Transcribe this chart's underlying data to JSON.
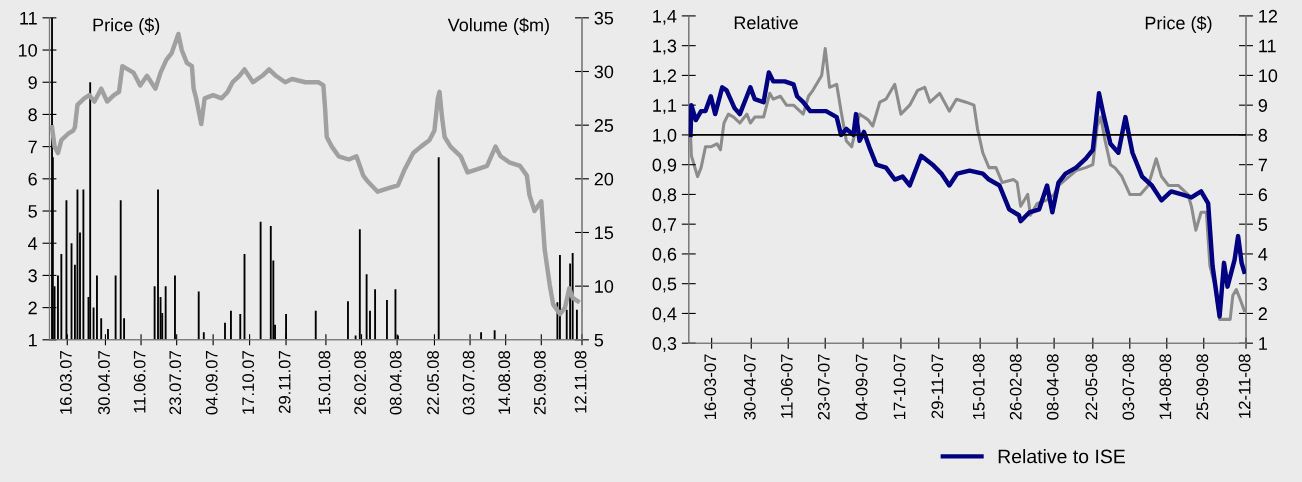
{
  "chart_data": [
    {
      "type": "line",
      "ylabel": "Price ($)",
      "y2label": "Volume ($m)",
      "xlim": [
        "2007-02-23",
        "2008-11-12"
      ],
      "xticks": [
        {
          "value": "2007-03-16",
          "label": "16.03.07"
        },
        {
          "value": "2007-04-30",
          "label": "30.04.07"
        },
        {
          "value": "2007-06-11",
          "label": "11.06.07"
        },
        {
          "value": "2007-07-23",
          "label": "23.07.07"
        },
        {
          "value": "2007-09-04",
          "label": "04.09.07"
        },
        {
          "value": "2007-10-17",
          "label": "17.10.07"
        },
        {
          "value": "2007-11-29",
          "label": "29.11.07"
        },
        {
          "value": "2008-01-15",
          "label": "15.01.08"
        },
        {
          "value": "2008-02-26",
          "label": "26.02.08"
        },
        {
          "value": "2008-04-08",
          "label": "08.04.08"
        },
        {
          "value": "2008-05-22",
          "label": "22.05.08"
        },
        {
          "value": "2008-07-03",
          "label": "03.07.08"
        },
        {
          "value": "2008-08-14",
          "label": "14.08.08"
        },
        {
          "value": "2008-09-25",
          "label": "25.09.08"
        },
        {
          "value": "2008-11-12",
          "label": "12.11.08"
        }
      ],
      "ylim": [
        1,
        11
      ],
      "yticks": [
        1,
        2,
        3,
        4,
        5,
        6,
        7,
        8,
        9,
        10,
        11
      ],
      "y2lim": [
        5,
        35
      ],
      "y2ticks": [
        5,
        10,
        15,
        20,
        25,
        30,
        35
      ],
      "grid": false,
      "legend": false,
      "series": [
        {
          "type": "bar",
          "axis": "y2",
          "color": "#000000",
          "x": [
            "2007-02-26",
            "2007-02-27",
            "2007-03-01",
            "2007-03-05",
            "2007-03-09",
            "2007-03-15",
            "2007-03-21",
            "2007-03-25",
            "2007-03-28",
            "2007-03-31",
            "2007-04-04",
            "2007-04-10",
            "2007-04-12",
            "2007-04-16",
            "2007-04-20",
            "2007-04-25",
            "2007-05-03",
            "2007-05-12",
            "2007-05-18",
            "2007-05-22",
            "2007-06-27",
            "2007-07-01",
            "2007-07-04",
            "2007-07-06",
            "2007-07-10",
            "2007-07-21",
            "2007-08-18",
            "2007-08-24",
            "2007-09-18",
            "2007-09-25",
            "2007-10-06",
            "2007-10-11",
            "2007-10-30",
            "2007-11-11",
            "2007-11-14",
            "2007-11-16",
            "2007-11-29",
            "2008-01-03",
            "2008-02-10",
            "2008-02-19",
            "2008-02-24",
            "2008-03-03",
            "2008-03-07",
            "2008-03-13",
            "2008-03-27",
            "2008-04-06",
            "2008-04-09",
            "2008-05-27",
            "2008-07-16",
            "2008-08-01",
            "2008-10-14",
            "2008-10-17",
            "2008-10-25",
            "2008-10-29",
            "2008-11-01",
            "2008-11-06"
          ],
          "values": [
            35,
            22,
            10,
            11,
            13,
            18,
            14,
            12,
            19,
            15,
            19,
            9,
            29,
            8,
            11,
            7,
            6,
            11,
            18,
            7,
            10,
            19,
            9,
            7.5,
            10,
            11,
            9.5,
            5.7,
            6.6,
            7.7,
            7.4,
            13,
            16,
            15.6,
            12.4,
            6.4,
            7.4,
            7.7,
            8.6,
            5.4,
            15.3,
            11.1,
            7.7,
            9.7,
            8.7,
            9.7,
            5.4,
            22,
            5.7,
            5.9,
            8.5,
            12.9,
            7.8,
            12.1,
            13.1,
            7.8
          ]
        },
        {
          "axis": "y",
          "color": "#a0a0a0",
          "x": [
            "2007-02-26",
            "2007-03-01",
            "2007-03-05",
            "2007-03-09",
            "2007-03-17",
            "2007-03-23",
            "2007-03-25",
            "2007-03-28",
            "2007-04-05",
            "2007-04-11",
            "2007-04-17",
            "2007-04-25",
            "2007-05-02",
            "2007-05-10",
            "2007-05-16",
            "2007-05-20",
            "2007-06-02",
            "2007-06-10",
            "2007-06-18",
            "2007-06-28",
            "2007-07-04",
            "2007-07-11",
            "2007-07-17",
            "2007-07-25",
            "2007-07-29",
            "2007-08-04",
            "2007-08-10",
            "2007-08-12",
            "2007-08-15",
            "2007-08-21",
            "2007-08-25",
            "2007-09-04",
            "2007-09-14",
            "2007-09-21",
            "2007-09-27",
            "2007-10-05",
            "2007-10-11",
            "2007-10-21",
            "2007-11-01",
            "2007-11-09",
            "2007-11-17",
            "2007-11-28",
            "2007-12-06",
            "2007-12-22",
            "2008-01-06",
            "2008-01-12",
            "2008-01-14",
            "2008-01-16",
            "2008-01-22",
            "2008-01-30",
            "2008-02-11",
            "2008-02-20",
            "2008-02-28",
            "2008-03-05",
            "2008-03-16",
            "2008-03-28",
            "2008-04-09",
            "2008-04-17",
            "2008-04-27",
            "2008-05-06",
            "2008-05-16",
            "2008-05-22",
            "2008-05-26",
            "2008-05-28",
            "2008-05-31",
            "2008-06-03",
            "2008-06-10",
            "2008-06-22",
            "2008-06-30",
            "2008-07-12",
            "2008-07-23",
            "2008-08-02",
            "2008-08-08",
            "2008-08-19",
            "2008-08-31",
            "2008-09-08",
            "2008-09-11",
            "2008-09-17",
            "2008-09-25",
            "2008-09-29",
            "2008-10-05",
            "2008-10-09",
            "2008-10-17",
            "2008-10-23",
            "2008-10-28",
            "2008-11-01",
            "2008-11-07"
          ],
          "values": [
            7.6,
            7.0,
            6.8,
            7.2,
            7.4,
            7.5,
            7.6,
            8.3,
            8.5,
            8.6,
            8.4,
            8.8,
            8.4,
            8.6,
            8.7,
            9.5,
            9.3,
            8.9,
            9.2,
            8.8,
            9.3,
            9.7,
            9.9,
            10.5,
            10.0,
            9.6,
            9.5,
            8.8,
            8.5,
            7.7,
            8.5,
            8.6,
            8.5,
            8.7,
            9.0,
            9.2,
            9.4,
            9.0,
            9.2,
            9.4,
            9.2,
            9.0,
            9.1,
            9.0,
            9.0,
            8.9,
            8.2,
            7.3,
            7.0,
            6.7,
            6.6,
            6.7,
            6.1,
            5.9,
            5.6,
            5.7,
            5.8,
            6.3,
            6.8,
            7.0,
            7.2,
            7.5,
            8.5,
            8.7,
            7.9,
            7.3,
            7.0,
            6.7,
            6.2,
            6.3,
            6.4,
            7.0,
            6.7,
            6.5,
            6.4,
            6.1,
            5.5,
            5.0,
            5.3,
            3.8,
            2.7,
            2.1,
            1.8,
            2.0,
            2.6,
            2.3,
            2.2
          ]
        }
      ]
    },
    {
      "type": "line",
      "ylabel": "Relative",
      "y2label": "Price ($)",
      "xlim": [
        "2007-02-18",
        "2008-11-12"
      ],
      "xticks": [
        {
          "value": "2007-03-16",
          "label": "16-03-07"
        },
        {
          "value": "2007-04-30",
          "label": "30-04-07"
        },
        {
          "value": "2007-06-11",
          "label": "11-06-07"
        },
        {
          "value": "2007-07-23",
          "label": "23-07-07"
        },
        {
          "value": "2007-09-04",
          "label": "04-09-07"
        },
        {
          "value": "2007-10-17",
          "label": "17-10-07"
        },
        {
          "value": "2007-11-29",
          "label": "29-11-07"
        },
        {
          "value": "2008-01-15",
          "label": "15-01-08"
        },
        {
          "value": "2008-02-26",
          "label": "26-02-08"
        },
        {
          "value": "2008-04-08",
          "label": "08-04-08"
        },
        {
          "value": "2008-05-22",
          "label": "22-05-08"
        },
        {
          "value": "2008-07-03",
          "label": "03-07-08"
        },
        {
          "value": "2008-08-14",
          "label": "14-08-08"
        },
        {
          "value": "2008-09-25",
          "label": "25-09-08"
        },
        {
          "value": "2008-11-12",
          "label": "12-11-08"
        }
      ],
      "ylim": [
        0.3,
        1.4
      ],
      "yticks": [
        {
          "value": 0.3,
          "label": "0,3"
        },
        {
          "value": 0.4,
          "label": "0,4"
        },
        {
          "value": 0.5,
          "label": "0,5"
        },
        {
          "value": 0.6,
          "label": "0,6"
        },
        {
          "value": 0.7,
          "label": "0,7"
        },
        {
          "value": 0.8,
          "label": "0,8"
        },
        {
          "value": 0.9,
          "label": "0,9"
        },
        {
          "value": 1.0,
          "label": "1,0"
        },
        {
          "value": 1.1,
          "label": "1,1"
        },
        {
          "value": 1.2,
          "label": "1,2"
        },
        {
          "value": 1.3,
          "label": "1,3"
        },
        {
          "value": 1.4,
          "label": "1,4"
        }
      ],
      "y2lim": [
        1,
        12
      ],
      "y2ticks": [
        1,
        2,
        3,
        4,
        5,
        6,
        7,
        8,
        9,
        10,
        11,
        12
      ],
      "ref_lines": [
        {
          "axis": "y",
          "value": 1.0,
          "color": "#000000"
        }
      ],
      "grid": false,
      "legend": "bottom",
      "series": [
        {
          "axis": "y2",
          "color": "#8c8c8c",
          "x": [
            "2007-02-20",
            "2007-02-21",
            "2007-02-28",
            "2007-03-04",
            "2007-03-09",
            "2007-03-15",
            "2007-03-22",
            "2007-03-26",
            "2007-03-30",
            "2007-04-04",
            "2007-04-10",
            "2007-04-17",
            "2007-04-25",
            "2007-04-29",
            "2007-05-04",
            "2007-05-14",
            "2007-05-21",
            "2007-05-25",
            "2007-06-02",
            "2007-06-09",
            "2007-06-17",
            "2007-06-28",
            "2007-07-04",
            "2007-07-09",
            "2007-07-19",
            "2007-07-23",
            "2007-07-28",
            "2007-08-05",
            "2007-08-10",
            "2007-08-16",
            "2007-08-22",
            "2007-08-31",
            "2007-09-10",
            "2007-09-15",
            "2007-09-23",
            "2007-09-30",
            "2007-10-10",
            "2007-10-17",
            "2007-10-27",
            "2007-11-05",
            "2007-11-13",
            "2007-11-19",
            "2007-11-30",
            "2007-12-11",
            "2007-12-19",
            "2007-12-30",
            "2008-01-08",
            "2008-01-12",
            "2008-01-18",
            "2008-01-25",
            "2008-02-02",
            "2008-02-09",
            "2008-02-22",
            "2008-02-26",
            "2008-03-01",
            "2008-03-09",
            "2008-03-12",
            "2008-03-20",
            "2008-03-30",
            "2008-04-08",
            "2008-04-13",
            "2008-04-21",
            "2008-05-03",
            "2008-05-14",
            "2008-05-22",
            "2008-05-27",
            "2008-05-31",
            "2008-06-05",
            "2008-06-11",
            "2008-06-16",
            "2008-06-24",
            "2008-07-03",
            "2008-07-15",
            "2008-07-24",
            "2008-08-02",
            "2008-08-08",
            "2008-08-16",
            "2008-08-27",
            "2008-09-07",
            "2008-09-11",
            "2008-09-16",
            "2008-09-22",
            "2008-09-28",
            "2008-10-02",
            "2008-10-08",
            "2008-10-13",
            "2008-10-19",
            "2008-10-25",
            "2008-10-28",
            "2008-11-01",
            "2008-11-05",
            "2008-11-10"
          ],
          "values": [
            8.0,
            7.3,
            6.6,
            6.9,
            7.6,
            7.6,
            7.7,
            7.5,
            8.4,
            8.7,
            8.6,
            8.4,
            8.7,
            8.4,
            8.6,
            8.6,
            9.4,
            9.2,
            9.3,
            9.0,
            9.0,
            8.7,
            9.3,
            9.5,
            10.0,
            10.9,
            9.6,
            9.7,
            8.8,
            7.8,
            7.6,
            8.7,
            8.5,
            8.3,
            9.1,
            9.2,
            9.7,
            8.7,
            9.0,
            9.5,
            9.6,
            9.1,
            9.4,
            8.8,
            9.2,
            9.1,
            9.0,
            8.2,
            7.4,
            6.9,
            6.9,
            6.4,
            6.5,
            6.4,
            5.6,
            6.0,
            5.3,
            5.7,
            5.8,
            6.0,
            6.3,
            6.5,
            6.8,
            6.9,
            7.0,
            8.3,
            8.6,
            7.8,
            7.0,
            6.9,
            6.6,
            6.0,
            6.0,
            6.3,
            7.2,
            6.6,
            6.3,
            6.3,
            6.0,
            5.6,
            4.8,
            5.4,
            5.4,
            3.6,
            2.9,
            1.8,
            1.8,
            1.8,
            2.6,
            2.8,
            2.5,
            2.1
          ]
        },
        {
          "axis": "y",
          "name": "Relative to ISE",
          "color": "#000080",
          "x": [
            "2007-02-20",
            "2007-02-21",
            "2007-02-26",
            "2007-03-04",
            "2007-03-09",
            "2007-03-15",
            "2007-03-20",
            "2007-03-28",
            "2007-04-02",
            "2007-04-11",
            "2007-04-17",
            "2007-04-25",
            "2007-04-29",
            "2007-05-04",
            "2007-05-14",
            "2007-05-20",
            "2007-05-25",
            "2007-06-07",
            "2007-06-17",
            "2007-06-21",
            "2007-06-28",
            "2007-07-06",
            "2007-07-17",
            "2007-07-24",
            "2007-08-05",
            "2007-08-10",
            "2007-08-16",
            "2007-08-24",
            "2007-08-27",
            "2007-08-31",
            "2007-09-05",
            "2007-09-11",
            "2007-09-19",
            "2007-09-30",
            "2007-10-10",
            "2007-10-19",
            "2007-10-27",
            "2007-11-09",
            "2007-11-22",
            "2007-12-02",
            "2007-12-11",
            "2007-12-20",
            "2008-01-03",
            "2008-01-18",
            "2008-01-25",
            "2008-02-06",
            "2008-02-17",
            "2008-02-28",
            "2008-03-01",
            "2008-03-11",
            "2008-03-22",
            "2008-03-31",
            "2008-04-06",
            "2008-04-13",
            "2008-04-21",
            "2008-05-03",
            "2008-05-14",
            "2008-05-22",
            "2008-05-29",
            "2008-06-03",
            "2008-06-11",
            "2008-06-20",
            "2008-06-28",
            "2008-07-06",
            "2008-07-17",
            "2008-07-28",
            "2008-08-08",
            "2008-08-19",
            "2008-08-31",
            "2008-09-11",
            "2008-09-22",
            "2008-09-30",
            "2008-10-05",
            "2008-10-13",
            "2008-10-18",
            "2008-10-22",
            "2008-10-30",
            "2008-11-03",
            "2008-11-07",
            "2008-11-10"
          ],
          "values": [
            1.0,
            1.1,
            1.05,
            1.08,
            1.08,
            1.13,
            1.07,
            1.16,
            1.15,
            1.09,
            1.07,
            1.13,
            1.16,
            1.12,
            1.11,
            1.21,
            1.18,
            1.18,
            1.17,
            1.13,
            1.11,
            1.08,
            1.08,
            1.08,
            1.06,
            1.0,
            1.02,
            1.0,
            1.07,
            0.98,
            1.01,
            0.96,
            0.9,
            0.89,
            0.85,
            0.86,
            0.83,
            0.93,
            0.9,
            0.87,
            0.83,
            0.87,
            0.88,
            0.87,
            0.85,
            0.83,
            0.75,
            0.73,
            0.71,
            0.74,
            0.75,
            0.83,
            0.74,
            0.84,
            0.87,
            0.89,
            0.92,
            0.95,
            1.14,
            1.07,
            0.97,
            0.94,
            1.06,
            0.94,
            0.86,
            0.83,
            0.78,
            0.81,
            0.8,
            0.79,
            0.81,
            0.77,
            0.56,
            0.39,
            0.57,
            0.49,
            0.58,
            0.66,
            0.57,
            0.54
          ]
        }
      ]
    }
  ]
}
